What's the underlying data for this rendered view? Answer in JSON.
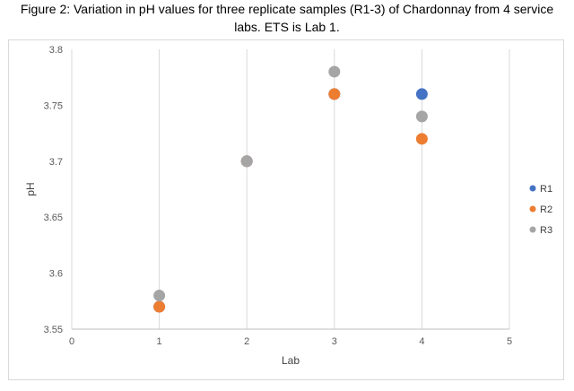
{
  "title_line1": "Figure 2: Variation in pH values for three replicate samples (R1-3) of Chardonnay from 4 service",
  "title_line2": "labs. ETS is Lab 1.",
  "chart_data": {
    "type": "scatter",
    "title": "Figure 2: Variation in pH values for three replicate samples (R1-3) of Chardonnay from 4 service labs. ETS is Lab 1.",
    "xlabel": "Lab",
    "ylabel": "pH",
    "xlim": [
      0,
      5
    ],
    "ylim": [
      3.55,
      3.8
    ],
    "x_ticks": [
      "0",
      "1",
      "2",
      "3",
      "4",
      "5"
    ],
    "y_ticks": [
      "3.55",
      "3.6",
      "3.65",
      "3.7",
      "3.75",
      "3.8"
    ],
    "grid": "vertical",
    "legend_position": "right",
    "series": [
      {
        "name": "R1",
        "color": "#4472c4",
        "points": [
          [
            1,
            3.57
          ],
          [
            2,
            3.7
          ],
          [
            3,
            3.76
          ],
          [
            4,
            3.76
          ]
        ]
      },
      {
        "name": "R2",
        "color": "#ed7d31",
        "points": [
          [
            1,
            3.57
          ],
          [
            2,
            3.7
          ],
          [
            3,
            3.76
          ],
          [
            4,
            3.72
          ]
        ]
      },
      {
        "name": "R3",
        "color": "#a5a5a5",
        "points": [
          [
            1,
            3.58
          ],
          [
            2,
            3.7
          ],
          [
            3,
            3.78
          ],
          [
            4,
            3.74
          ]
        ]
      }
    ]
  }
}
